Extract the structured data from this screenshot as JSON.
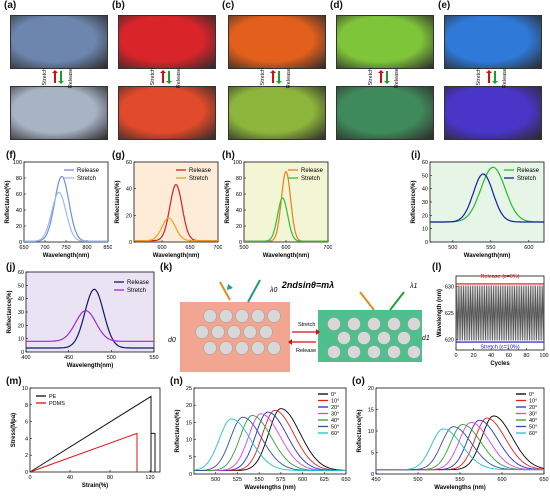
{
  "panel_labels": [
    "(a)",
    "(b)",
    "(c)",
    "(d)",
    "(e)",
    "(f)",
    "(g)",
    "(h)",
    "(i)",
    "(j)",
    "(k)",
    "(l)",
    "(m)",
    "(n)",
    "(o)"
  ],
  "photos": {
    "release_word": "Release",
    "stretch_word": "Stretch",
    "top_colors": [
      "#6d86ae",
      "#d9252a",
      "#e2601c",
      "#7ec53a",
      "#2f79d8"
    ],
    "bottom_colors": [
      "#a8b4c4",
      "#e14a2a",
      "#8db53c",
      "#3f8a5a",
      "#4a35c9"
    ]
  },
  "chart_data": [
    {
      "id": "f",
      "type": "line",
      "xlabel": "Wavelength(nm)",
      "ylabel": "Reflectance(%)",
      "xlim": [
        650,
        850
      ],
      "ylim": [
        0,
        100
      ],
      "xticks": [
        650,
        700,
        750,
        800,
        850
      ],
      "yticks": [
        0,
        20,
        40,
        60,
        80,
        100
      ],
      "series": [
        {
          "name": "Release",
          "color": "#6f8fe0",
          "peak": 740,
          "height": 82,
          "width": 17
        },
        {
          "name": "Stretch",
          "color": "#9fb9f0",
          "peak": 733,
          "height": 62,
          "width": 17
        }
      ]
    },
    {
      "id": "g",
      "type": "line",
      "xlabel": "Wavelength(nm)",
      "ylabel": "Reflectance(%)",
      "xlim": [
        550,
        700
      ],
      "ylim": [
        0,
        60
      ],
      "xticks": [
        600,
        650,
        700
      ],
      "yticks": [
        0,
        20,
        40,
        60
      ],
      "series": [
        {
          "name": "Release",
          "color": "#d62020",
          "peak": 625,
          "height": 43,
          "width": 11
        },
        {
          "name": "Stretch",
          "color": "#f0a020",
          "peak": 612,
          "height": 18,
          "width": 12
        }
      ]
    },
    {
      "id": "h",
      "type": "line",
      "xlabel": "Wavelength(nm)",
      "ylabel": "Reflectance(%)",
      "xlim": [
        500,
        700
      ],
      "ylim": [
        0,
        100
      ],
      "xticks": [
        500,
        600,
        700
      ],
      "yticks": [
        0,
        20,
        40,
        60,
        80,
        100
      ],
      "series": [
        {
          "name": "Release",
          "color": "#f07d18",
          "peak": 600,
          "height": 88,
          "width": 11
        },
        {
          "name": "Stretch",
          "color": "#2fbf3a",
          "peak": 592,
          "height": 55,
          "width": 12
        }
      ]
    },
    {
      "id": "i",
      "type": "line",
      "xlabel": "Wavelength(nm)",
      "ylabel": "Reflectance(%)",
      "xlim": [
        470,
        620
      ],
      "ylim": [
        0,
        60
      ],
      "xticks": [
        500,
        550,
        600
      ],
      "yticks": [
        0,
        10,
        20,
        30,
        40,
        50,
        60
      ],
      "series": [
        {
          "name": "Release",
          "color": "#22c02a",
          "peak": 553,
          "height": 56,
          "width": 16,
          "base": 15
        },
        {
          "name": "Stretch",
          "color": "#1a1ab0",
          "peak": 540,
          "height": 51,
          "width": 13,
          "base": 15
        }
      ]
    },
    {
      "id": "j",
      "type": "line",
      "xlabel": "Wavelength(nm)",
      "ylabel": "Reflectance(%)",
      "xlim": [
        400,
        550
      ],
      "ylim": [
        0,
        60
      ],
      "xticks": [
        400,
        450,
        500,
        550
      ],
      "yticks": [
        0,
        10,
        20,
        30,
        40,
        50,
        60
      ],
      "series": [
        {
          "name": "Release",
          "color": "#141a6a",
          "peak": 480,
          "height": 47,
          "width": 11,
          "base": 3
        },
        {
          "name": "Stretch",
          "color": "#a12ad6",
          "peak": 470,
          "height": 31,
          "width": 12,
          "base": 8
        }
      ]
    },
    {
      "id": "l",
      "type": "line",
      "xlabel": "Cycles",
      "ylabel": "Wavelength (nm)",
      "xlim": [
        0,
        100
      ],
      "ylim": [
        618,
        632
      ],
      "xticks": [
        0,
        20,
        40,
        60,
        80,
        100
      ],
      "yticks": [
        620,
        625,
        630
      ],
      "annotations": [
        "Release (ε=0%)",
        "Stretch (ε=10%)"
      ],
      "series": [
        {
          "name": "Release",
          "color": "#d01010",
          "value": 630.5
        },
        {
          "name": "Stretch",
          "color": "#1010c0",
          "value": 619.5
        }
      ]
    },
    {
      "id": "m",
      "type": "line",
      "xlabel": "Strain(%)",
      "ylabel": "Stress(Mpa)",
      "xlim": [
        0,
        130
      ],
      "ylim": [
        0,
        10
      ],
      "xticks": [
        0,
        40,
        80,
        120
      ],
      "yticks": [
        0,
        2,
        4,
        6,
        8,
        10
      ],
      "series": [
        {
          "name": "PE",
          "color": "#111111",
          "end_strain": 121,
          "end_stress": 9.0
        },
        {
          "name": "PDMS",
          "color": "#e01010",
          "end_strain": 107,
          "end_stress": 4.6
        }
      ]
    },
    {
      "id": "n",
      "type": "line",
      "xlabel": "Wavelengths (nm)",
      "ylabel": "Reflectance(%)",
      "xlim": [
        475,
        650
      ],
      "ylim": [
        0,
        25
      ],
      "xticks": [
        500,
        525,
        550,
        575,
        600,
        625,
        650
      ],
      "yticks": [
        0,
        5,
        10,
        15,
        20,
        25
      ],
      "series": [
        {
          "name": "0°",
          "color": "#000000",
          "peak": 575,
          "height": 19
        },
        {
          "name": "10°",
          "color": "#e51f1f",
          "peak": 568,
          "height": 18.5
        },
        {
          "name": "20°",
          "color": "#2030d0",
          "peak": 560,
          "height": 18
        },
        {
          "name": "30°",
          "color": "#e040e0",
          "peak": 552,
          "height": 17.5
        },
        {
          "name": "40°",
          "color": "#30a030",
          "peak": 542,
          "height": 17
        },
        {
          "name": "50°",
          "color": "#3050a0",
          "peak": 531,
          "height": 16.5
        },
        {
          "name": "60°",
          "color": "#20c0d0",
          "peak": 518,
          "height": 16
        }
      ]
    },
    {
      "id": "o",
      "type": "line",
      "xlabel": "Wavelengths (nm)",
      "ylabel": "Reflectance(%)",
      "xlim": [
        450,
        650
      ],
      "ylim": [
        0,
        20
      ],
      "xticks": [
        450,
        500,
        550,
        600,
        650
      ],
      "yticks": [
        0,
        5,
        10,
        15,
        20
      ],
      "series": [
        {
          "name": "0°",
          "color": "#000000",
          "peak": 590,
          "height": 13.5
        },
        {
          "name": "10°",
          "color": "#e51f1f",
          "peak": 582,
          "height": 13
        },
        {
          "name": "20°",
          "color": "#2030d0",
          "peak": 573,
          "height": 12.5
        },
        {
          "name": "30°",
          "color": "#e040e0",
          "peak": 563,
          "height": 12
        },
        {
          "name": "40°",
          "color": "#30a030",
          "peak": 553,
          "height": 11.5
        },
        {
          "name": "50°",
          "color": "#3050a0",
          "peak": 542,
          "height": 11
        },
        {
          "name": "60°",
          "color": "#20c0d0",
          "peak": 530,
          "height": 10.5
        }
      ]
    }
  ],
  "diagram_k": {
    "equation": "2ndsinθ=mλ",
    "lambda0": "λ0",
    "lambda1": "λ1",
    "d0": "d0",
    "d1": "d1",
    "stretch": "Stretch",
    "release": "Release"
  }
}
